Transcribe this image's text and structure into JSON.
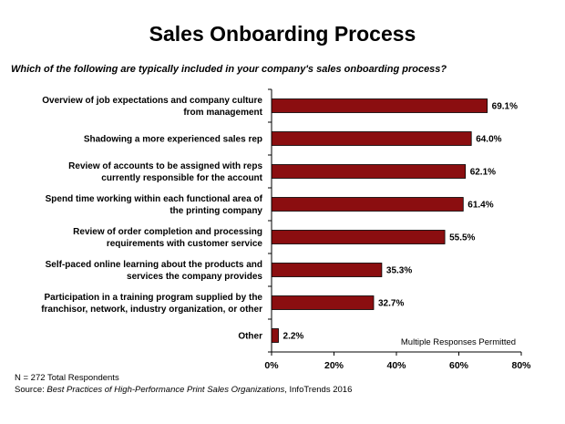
{
  "title": "Sales Onboarding Process",
  "question": "Which of the following are typically included in your company's sales onboarding process?",
  "note": "Multiple Responses Permitted",
  "footnote_n": "N = 272 Total Respondents",
  "source": {
    "prefix": "Source: ",
    "title": "Best Practices of High-Performance Print Sales Organizations",
    "suffix": ", InfoTrends 2016"
  },
  "colors": {
    "bar": "#8b0e10",
    "bar_stroke": "#000000",
    "axis": "#000000"
  },
  "chart_data": {
    "type": "bar",
    "orientation": "horizontal",
    "title": "Sales Onboarding Process",
    "xlabel": "",
    "ylabel": "",
    "xlim": [
      0,
      80
    ],
    "xticks": [
      "0%",
      "20%",
      "40%",
      "60%",
      "80%"
    ],
    "grid": false,
    "categories": [
      [
        "Overview of job expectations and company culture",
        "from management"
      ],
      [
        "Shadowing a more experienced sales rep"
      ],
      [
        "Review of accounts to be assigned with reps",
        "currently responsible for the account"
      ],
      [
        "Spend time working within each functional area of",
        "the printing company"
      ],
      [
        "Review of order completion and processing",
        "requirements with customer service"
      ],
      [
        "Self-paced online learning about the products and",
        "services the company provides"
      ],
      [
        "Participation in a training program supplied by the",
        "franchisor, network, industry organization, or other"
      ],
      [
        "Other"
      ]
    ],
    "values": [
      69.1,
      64.0,
      62.1,
      61.4,
      55.5,
      35.3,
      32.7,
      2.2
    ],
    "value_labels": [
      "69.1%",
      "64.0%",
      "62.1%",
      "61.4%",
      "55.5%",
      "35.3%",
      "32.7%",
      "2.2%"
    ]
  }
}
